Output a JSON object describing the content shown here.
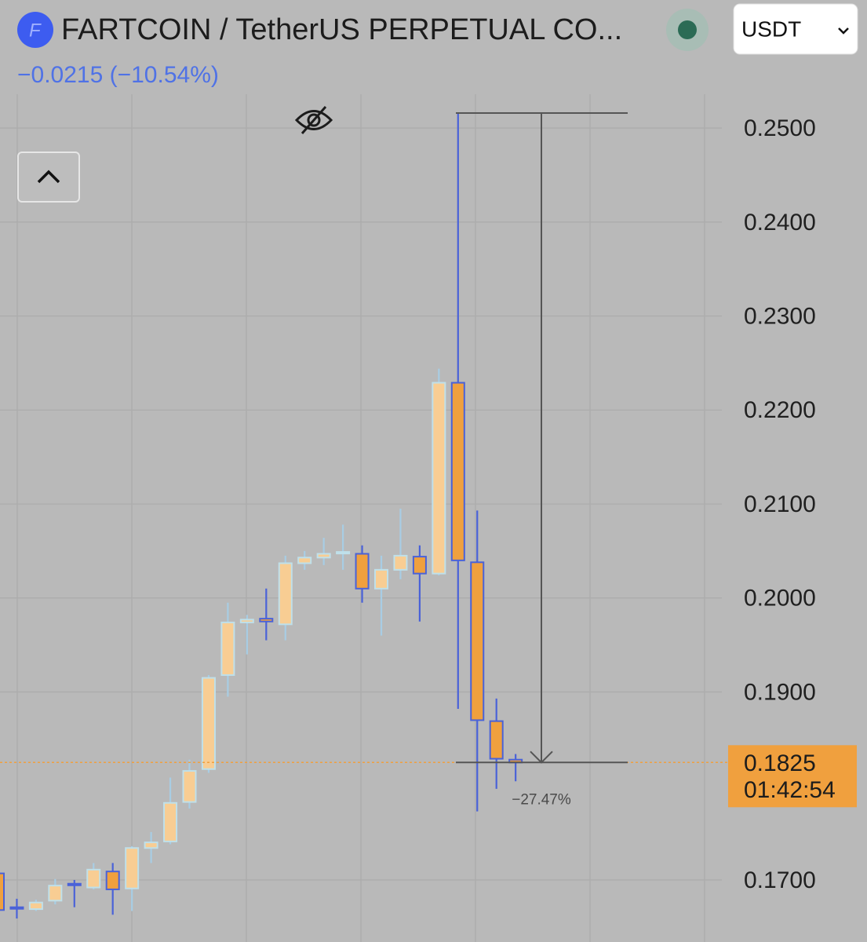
{
  "chart_data": {
    "type": "candlestick",
    "title": "FARTCOIN / TetherUS PERPETUAL CO...",
    "subtitle": "−0.0215 (−10.54%)",
    "currency": "USDT",
    "ylim": [
      0.1634,
      0.2536
    ],
    "yticks": [
      {
        "value": 0.25,
        "label": "0.2500"
      },
      {
        "value": 0.24,
        "label": "0.2400"
      },
      {
        "value": 0.23,
        "label": "0.2300"
      },
      {
        "value": 0.22,
        "label": "0.2200"
      },
      {
        "value": 0.21,
        "label": "0.2100"
      },
      {
        "value": 0.2,
        "label": "0.2000"
      },
      {
        "value": 0.19,
        "label": "0.1900"
      },
      {
        "value": 0.17,
        "label": "0.1700"
      }
    ],
    "open": [
      0.1707,
      0.1671,
      0.1669,
      0.1678,
      0.1696,
      0.1692,
      0.1709,
      0.1691,
      0.1734,
      0.1741,
      0.1783,
      0.1818,
      0.1918,
      0.1974,
      0.1978,
      0.1972,
      0.2037,
      0.2043,
      0.2048,
      0.2047,
      0.201,
      0.203,
      0.2044,
      0.2026,
      0.2229,
      0.2038,
      0.1869,
      0.1828
    ],
    "high": [
      0.1712,
      0.168,
      0.1679,
      0.1701,
      0.17,
      0.1718,
      0.1718,
      0.1736,
      0.1751,
      0.1809,
      0.1828,
      0.1918,
      0.1995,
      0.1982,
      0.201,
      0.2045,
      0.205,
      0.2064,
      0.2078,
      0.2056,
      0.2045,
      0.2095,
      0.2056,
      0.2244,
      0.2516,
      0.2093,
      0.1893,
      0.1834
    ],
    "low": [
      0.1665,
      0.1659,
      0.1667,
      0.1674,
      0.1671,
      0.169,
      0.1663,
      0.1667,
      0.1718,
      0.1738,
      0.1776,
      0.1814,
      0.1895,
      0.194,
      0.1955,
      0.1955,
      0.203,
      0.2035,
      0.203,
      0.1995,
      0.196,
      0.202,
      0.1975,
      0.2024,
      0.1882,
      0.1773,
      0.1797,
      0.1805
    ],
    "close": [
      0.1668,
      0.167,
      0.1676,
      0.1694,
      0.1695,
      0.1711,
      0.169,
      0.1734,
      0.174,
      0.1782,
      0.1816,
      0.1915,
      0.1974,
      0.1977,
      0.1975,
      0.2037,
      0.2043,
      0.2047,
      0.2049,
      0.201,
      0.203,
      0.2045,
      0.2026,
      0.2229,
      0.204,
      0.187,
      0.1829,
      0.1825
    ],
    "up_color": "#f8cd93",
    "up_border": "#bfe0ea",
    "down_color": "#f0a03e",
    "down_border": "#4a62d8",
    "last_price": {
      "value": 0.1825,
      "label": "0.1825"
    },
    "countdown": "01:42:54",
    "measure": {
      "from": 0.2516,
      "to": 0.1825,
      "label": "−27.47%"
    }
  }
}
